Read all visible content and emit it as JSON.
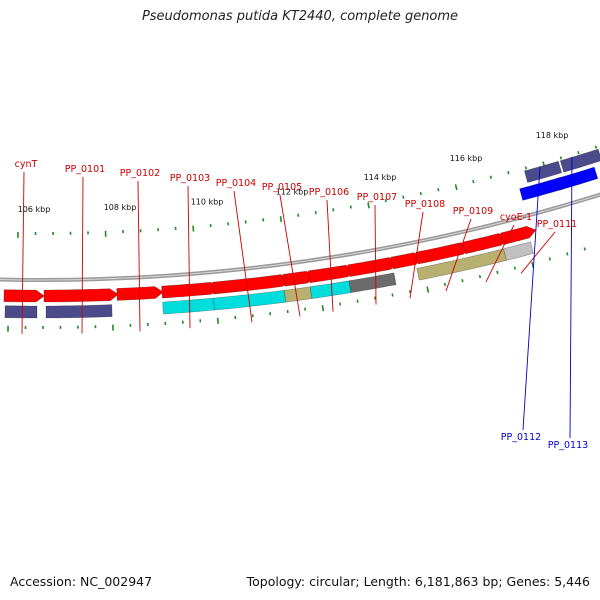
{
  "title": "Pseudomonas putida KT2440, complete genome",
  "accession": "Accession: NC_002947",
  "summary": "Topology: circular; Length: 6,181,863 bp; Genes: 5,446",
  "colors": {
    "backbone": "#808080",
    "forward_tick": "#228b22",
    "reverse_tick": "#228b22",
    "forward_label": "#cc0000",
    "reverse_label": "#0000cc",
    "cds": "#ff0000",
    "gene": "#4b4b8c",
    "cyan_feature": "#00dddd",
    "tan_feature": "#b8b070",
    "gray_feature": "#6b6b6b",
    "light_feature": "#c0c0c0",
    "blue_cds": "#0000ff"
  },
  "scale_labels": [
    "106 kbp",
    "108 kbp",
    "110 kbp",
    "112 kbp",
    "114 kbp",
    "116 kbp",
    "118 kbp"
  ],
  "forward_genes": [
    "cynT",
    "PP_0101",
    "PP_0102",
    "PP_0103",
    "PP_0104",
    "PP_0105",
    "PP_0106",
    "PP_0107",
    "PP_0108",
    "PP_0109",
    "cyoE-1",
    "PP_0111"
  ],
  "reverse_genes": [
    "PP_0112",
    "PP_0113"
  ]
}
